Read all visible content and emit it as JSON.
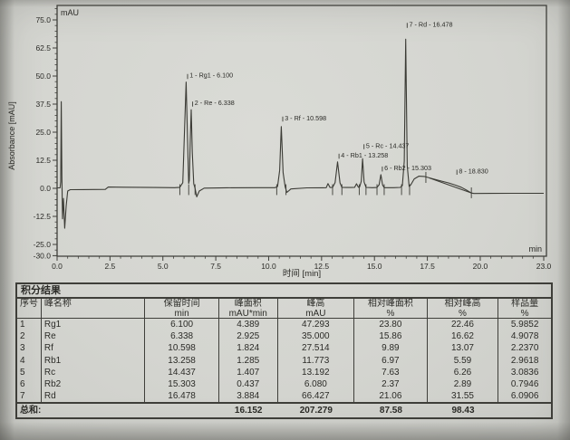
{
  "colors": {
    "paper": "#d4d5d0",
    "line": "#3f3f3a",
    "trace": "#3b3b35",
    "text": "#2a2a26"
  },
  "chart_data": {
    "type": "line",
    "subtype": "chromatogram",
    "title": "",
    "xlabel": "时间 [min]",
    "ylabel": "Absorbance [mAU]",
    "y_unit_corner": "mAU",
    "x_unit_corner": "min",
    "xlim": [
      0,
      23
    ],
    "ylim": [
      -30,
      75
    ],
    "grid": false,
    "legend": "none",
    "x_tick_labels": [
      "0.0",
      "2.5",
      "5.0",
      "7.5",
      "10.0",
      "12.5",
      "15.0",
      "17.5",
      "20.0",
      "23.0"
    ],
    "y_tick_labels": [
      "75.0",
      "62.5",
      "50.0",
      "37.5",
      "25.0",
      "12.5",
      "0.0",
      "-12.5",
      "-25.0",
      "-30.0"
    ],
    "peaks": [
      {
        "no": 1,
        "name": "Rg1",
        "rt": 6.1,
        "height": 47.293,
        "label": "1 - Rg1 - 6.100",
        "dy": 0
      },
      {
        "no": 2,
        "name": "Re",
        "rt": 6.338,
        "height": 35.0,
        "label": "2 - Re - 6.338",
        "dy": 0
      },
      {
        "no": 3,
        "name": "Rf",
        "rt": 10.598,
        "height": 27.514,
        "label": "3 - Rf - 10.598",
        "dy": -2
      },
      {
        "no": 4,
        "name": "Rb1",
        "rt": 13.258,
        "height": 11.773,
        "label": "4 - Rb1 - 13.258",
        "dy": 0
      },
      {
        "no": 5,
        "name": "Rc",
        "rt": 14.437,
        "height": 13.192,
        "label": "5 - Rc - 14.437",
        "dy": -7
      },
      {
        "no": 6,
        "name": "Rb2",
        "rt": 15.303,
        "height": 6.08,
        "label": "6 - Rb2 - 15.303",
        "dy": 0
      },
      {
        "no": 7,
        "name": "Rd",
        "rt": 16.478,
        "height": 66.427,
        "label": "7 - Rd - 16.478",
        "dy": -9
      },
      {
        "no": 8,
        "name": "",
        "rt": 18.83,
        "height": 1.4,
        "label": "8 - 18.830",
        "dy": -8
      }
    ],
    "trace_points": [
      [
        0.02,
        0.2
      ],
      [
        0.14,
        0.2
      ],
      [
        0.17,
        3
      ],
      [
        0.195,
        38.6
      ],
      [
        0.225,
        5
      ],
      [
        0.255,
        -13.6
      ],
      [
        0.3,
        -4.5
      ],
      [
        0.36,
        -17.8
      ],
      [
        0.43,
        -8
      ],
      [
        0.5,
        -1.2
      ],
      [
        0.62,
        -0.6
      ],
      [
        1.2,
        -0.55
      ],
      [
        2.28,
        -0.5
      ],
      [
        2.42,
        0.55
      ],
      [
        3.2,
        0.5
      ],
      [
        4.6,
        0.35
      ],
      [
        5.55,
        0.3
      ],
      [
        5.8,
        0.45
      ],
      [
        5.94,
        2.5
      ],
      [
        6.03,
        28
      ],
      [
        6.1,
        47.29
      ],
      [
        6.16,
        24
      ],
      [
        6.22,
        2.2
      ],
      [
        6.25,
        3.5
      ],
      [
        6.295,
        22
      ],
      [
        6.338,
        35.0
      ],
      [
        6.39,
        16
      ],
      [
        6.46,
        2.0
      ],
      [
        6.52,
        0.1
      ],
      [
        6.6,
        -3.8
      ],
      [
        6.72,
        -1.2
      ],
      [
        6.95,
        0.1
      ],
      [
        8.0,
        0.25
      ],
      [
        9.5,
        0.3
      ],
      [
        10.3,
        0.3
      ],
      [
        10.42,
        0.8
      ],
      [
        10.52,
        8
      ],
      [
        10.598,
        27.51
      ],
      [
        10.68,
        7
      ],
      [
        10.78,
        0.6
      ],
      [
        10.86,
        -1.8
      ],
      [
        11.05,
        -0.3
      ],
      [
        11.8,
        0.2
      ],
      [
        12.55,
        0.25
      ],
      [
        12.72,
        0.3
      ],
      [
        12.8,
        2.1
      ],
      [
        12.9,
        0.35
      ],
      [
        13.02,
        0.4
      ],
      [
        13.14,
        2.6
      ],
      [
        13.258,
        11.77
      ],
      [
        13.37,
        2.4
      ],
      [
        13.46,
        0.4
      ],
      [
        13.9,
        0.35
      ],
      [
        14.06,
        0.4
      ],
      [
        14.15,
        2.0
      ],
      [
        14.24,
        0.5
      ],
      [
        14.3,
        0.7
      ],
      [
        14.38,
        3.2
      ],
      [
        14.437,
        13.19
      ],
      [
        14.51,
        2.8
      ],
      [
        14.6,
        0.4
      ],
      [
        14.9,
        0.3
      ],
      [
        15.12,
        0.35
      ],
      [
        15.22,
        1.6
      ],
      [
        15.303,
        6.08
      ],
      [
        15.385,
        1.5
      ],
      [
        15.46,
        0.3
      ],
      [
        15.9,
        0.3
      ],
      [
        16.22,
        0.4
      ],
      [
        16.32,
        1.2
      ],
      [
        16.41,
        12
      ],
      [
        16.478,
        66.43
      ],
      [
        16.55,
        10
      ],
      [
        16.64,
        0.8
      ],
      [
        16.72,
        1.6
      ],
      [
        16.88,
        4.2
      ],
      [
        17.1,
        5.4
      ],
      [
        17.35,
        5.3
      ],
      [
        17.43,
        5.1
      ],
      [
        17.7,
        4.4
      ],
      [
        18.1,
        3.4
      ],
      [
        18.5,
        2.4
      ],
      [
        18.83,
        1.4
      ],
      [
        19.1,
        0.5
      ],
      [
        19.35,
        -0.8
      ],
      [
        19.58,
        -2.1
      ],
      [
        19.7,
        -2.3
      ],
      [
        20.5,
        -2.25
      ],
      [
        21.5,
        -2.2
      ],
      [
        23.0,
        -2.2
      ]
    ],
    "skim_baseline": [
      [
        17.6,
        4.6
      ],
      [
        19.58,
        -2.1
      ]
    ],
    "peak_base_marks": [
      [
        5.8,
        1.8,
        -3.0
      ],
      [
        6.22,
        1.8,
        -3.0
      ],
      [
        6.52,
        1.8,
        -3.0
      ],
      [
        10.38,
        1.8,
        -3.0
      ],
      [
        10.82,
        1.8,
        -3.0
      ],
      [
        13.02,
        1.8,
        -3.0
      ],
      [
        13.46,
        1.8,
        -3.0
      ],
      [
        14.28,
        1.8,
        -3.0
      ],
      [
        14.6,
        1.8,
        -3.0
      ],
      [
        15.12,
        1.8,
        -3.0
      ],
      [
        15.46,
        1.8,
        -3.0
      ],
      [
        16.28,
        1.8,
        -3.0
      ],
      [
        16.66,
        1.8,
        -3.0
      ],
      [
        17.43,
        7.3,
        2.4
      ],
      [
        19.58,
        0.4,
        -4.4
      ]
    ]
  },
  "table": {
    "title": "积分结果",
    "columns": [
      {
        "label": "序号",
        "unit": ""
      },
      {
        "label": "峰名称",
        "unit": ""
      },
      {
        "label": "保留时间",
        "unit": "min"
      },
      {
        "label": "峰面积",
        "unit": "mAU*min"
      },
      {
        "label": "峰高",
        "unit": "mAU"
      },
      {
        "label": "相对峰面积",
        "unit": "%"
      },
      {
        "label": "相对峰高",
        "unit": "%"
      },
      {
        "label": "样品量",
        "unit": "%"
      }
    ],
    "rows": [
      [
        "1",
        "Rg1",
        "6.100",
        "4.389",
        "47.293",
        "23.80",
        "22.46",
        "5.9852"
      ],
      [
        "2",
        "Re",
        "6.338",
        "2.925",
        "35.000",
        "15.86",
        "16.62",
        "4.9078"
      ],
      [
        "3",
        "Rf",
        "10.598",
        "1.824",
        "27.514",
        "9.89",
        "13.07",
        "2.2370"
      ],
      [
        "4",
        "Rb1",
        "13.258",
        "1.285",
        "11.773",
        "6.97",
        "5.59",
        "2.9618"
      ],
      [
        "5",
        "Rc",
        "14.437",
        "1.407",
        "13.192",
        "7.63",
        "6.26",
        "3.0836"
      ],
      [
        "6",
        "Rb2",
        "15.303",
        "0.437",
        "6.080",
        "2.37",
        "2.89",
        "0.7946"
      ],
      [
        "7",
        "Rd",
        "16.478",
        "3.884",
        "66.427",
        "21.06",
        "31.55",
        "6.0906"
      ]
    ],
    "totals": {
      "label": "总和:",
      "rt": "",
      "area": "16.152",
      "height": "207.279",
      "rel_area": "87.58",
      "rel_height": "98.43",
      "amount": ""
    }
  }
}
